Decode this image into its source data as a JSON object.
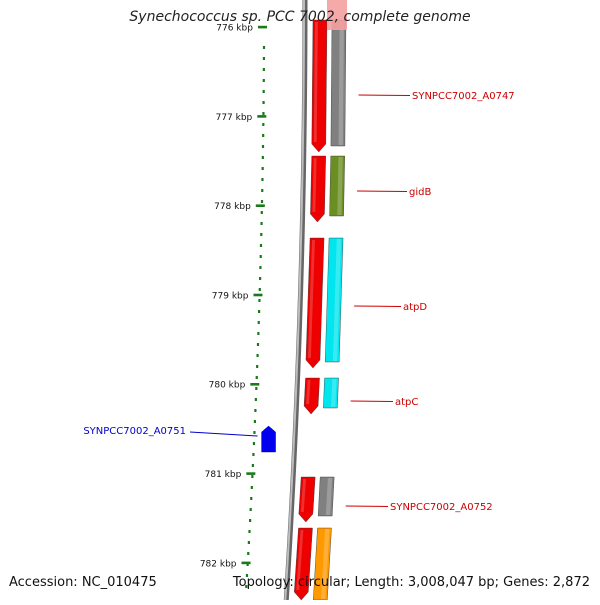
{
  "title": "Synechococcus sp. PCC 7002, complete genome",
  "footer": {
    "accession": "Accession: NC_010475",
    "stats": "Topology: circular; Length: 3,008,047 bp; Genes: 2,872"
  },
  "ruler": {
    "color": "#1a7a1a",
    "ticks": [
      {
        "label": "776 kbp",
        "kbp": 776
      },
      {
        "label": "777 kbp",
        "kbp": 777
      },
      {
        "label": "778 kbp",
        "kbp": 778
      },
      {
        "label": "779 kbp",
        "kbp": 779
      },
      {
        "label": "780 kbp",
        "kbp": 780
      },
      {
        "label": "781 kbp",
        "kbp": 781
      },
      {
        "label": "782 kbp",
        "kbp": 782
      }
    ]
  },
  "genes": [
    {
      "name": "SYNPCC7002_A0747",
      "strand": "reverse",
      "color": "#808080",
      "label_color": "#cc0000"
    },
    {
      "name": "gidB",
      "strand": "reverse",
      "color": "#6b8e23",
      "label_color": "#cc0000"
    },
    {
      "name": "atpD",
      "strand": "reverse",
      "color": "#00e5ee",
      "label_color": "#cc0000"
    },
    {
      "name": "atpC",
      "strand": "reverse",
      "color": "#00e5ee",
      "label_color": "#cc0000"
    },
    {
      "name": "SYNPCC7002_A0751",
      "strand": "forward",
      "color": "#0000ee",
      "label_color": "#0000cc"
    },
    {
      "name": "SYNPCC7002_A0752",
      "strand": "reverse",
      "color": "#808080",
      "label_color": "#cc0000"
    },
    {
      "name": "",
      "strand": "reverse",
      "color": "#ff9900",
      "label_color": "#cc0000"
    }
  ],
  "cds_color": "#ee0000",
  "backbone_color": "#888888"
}
